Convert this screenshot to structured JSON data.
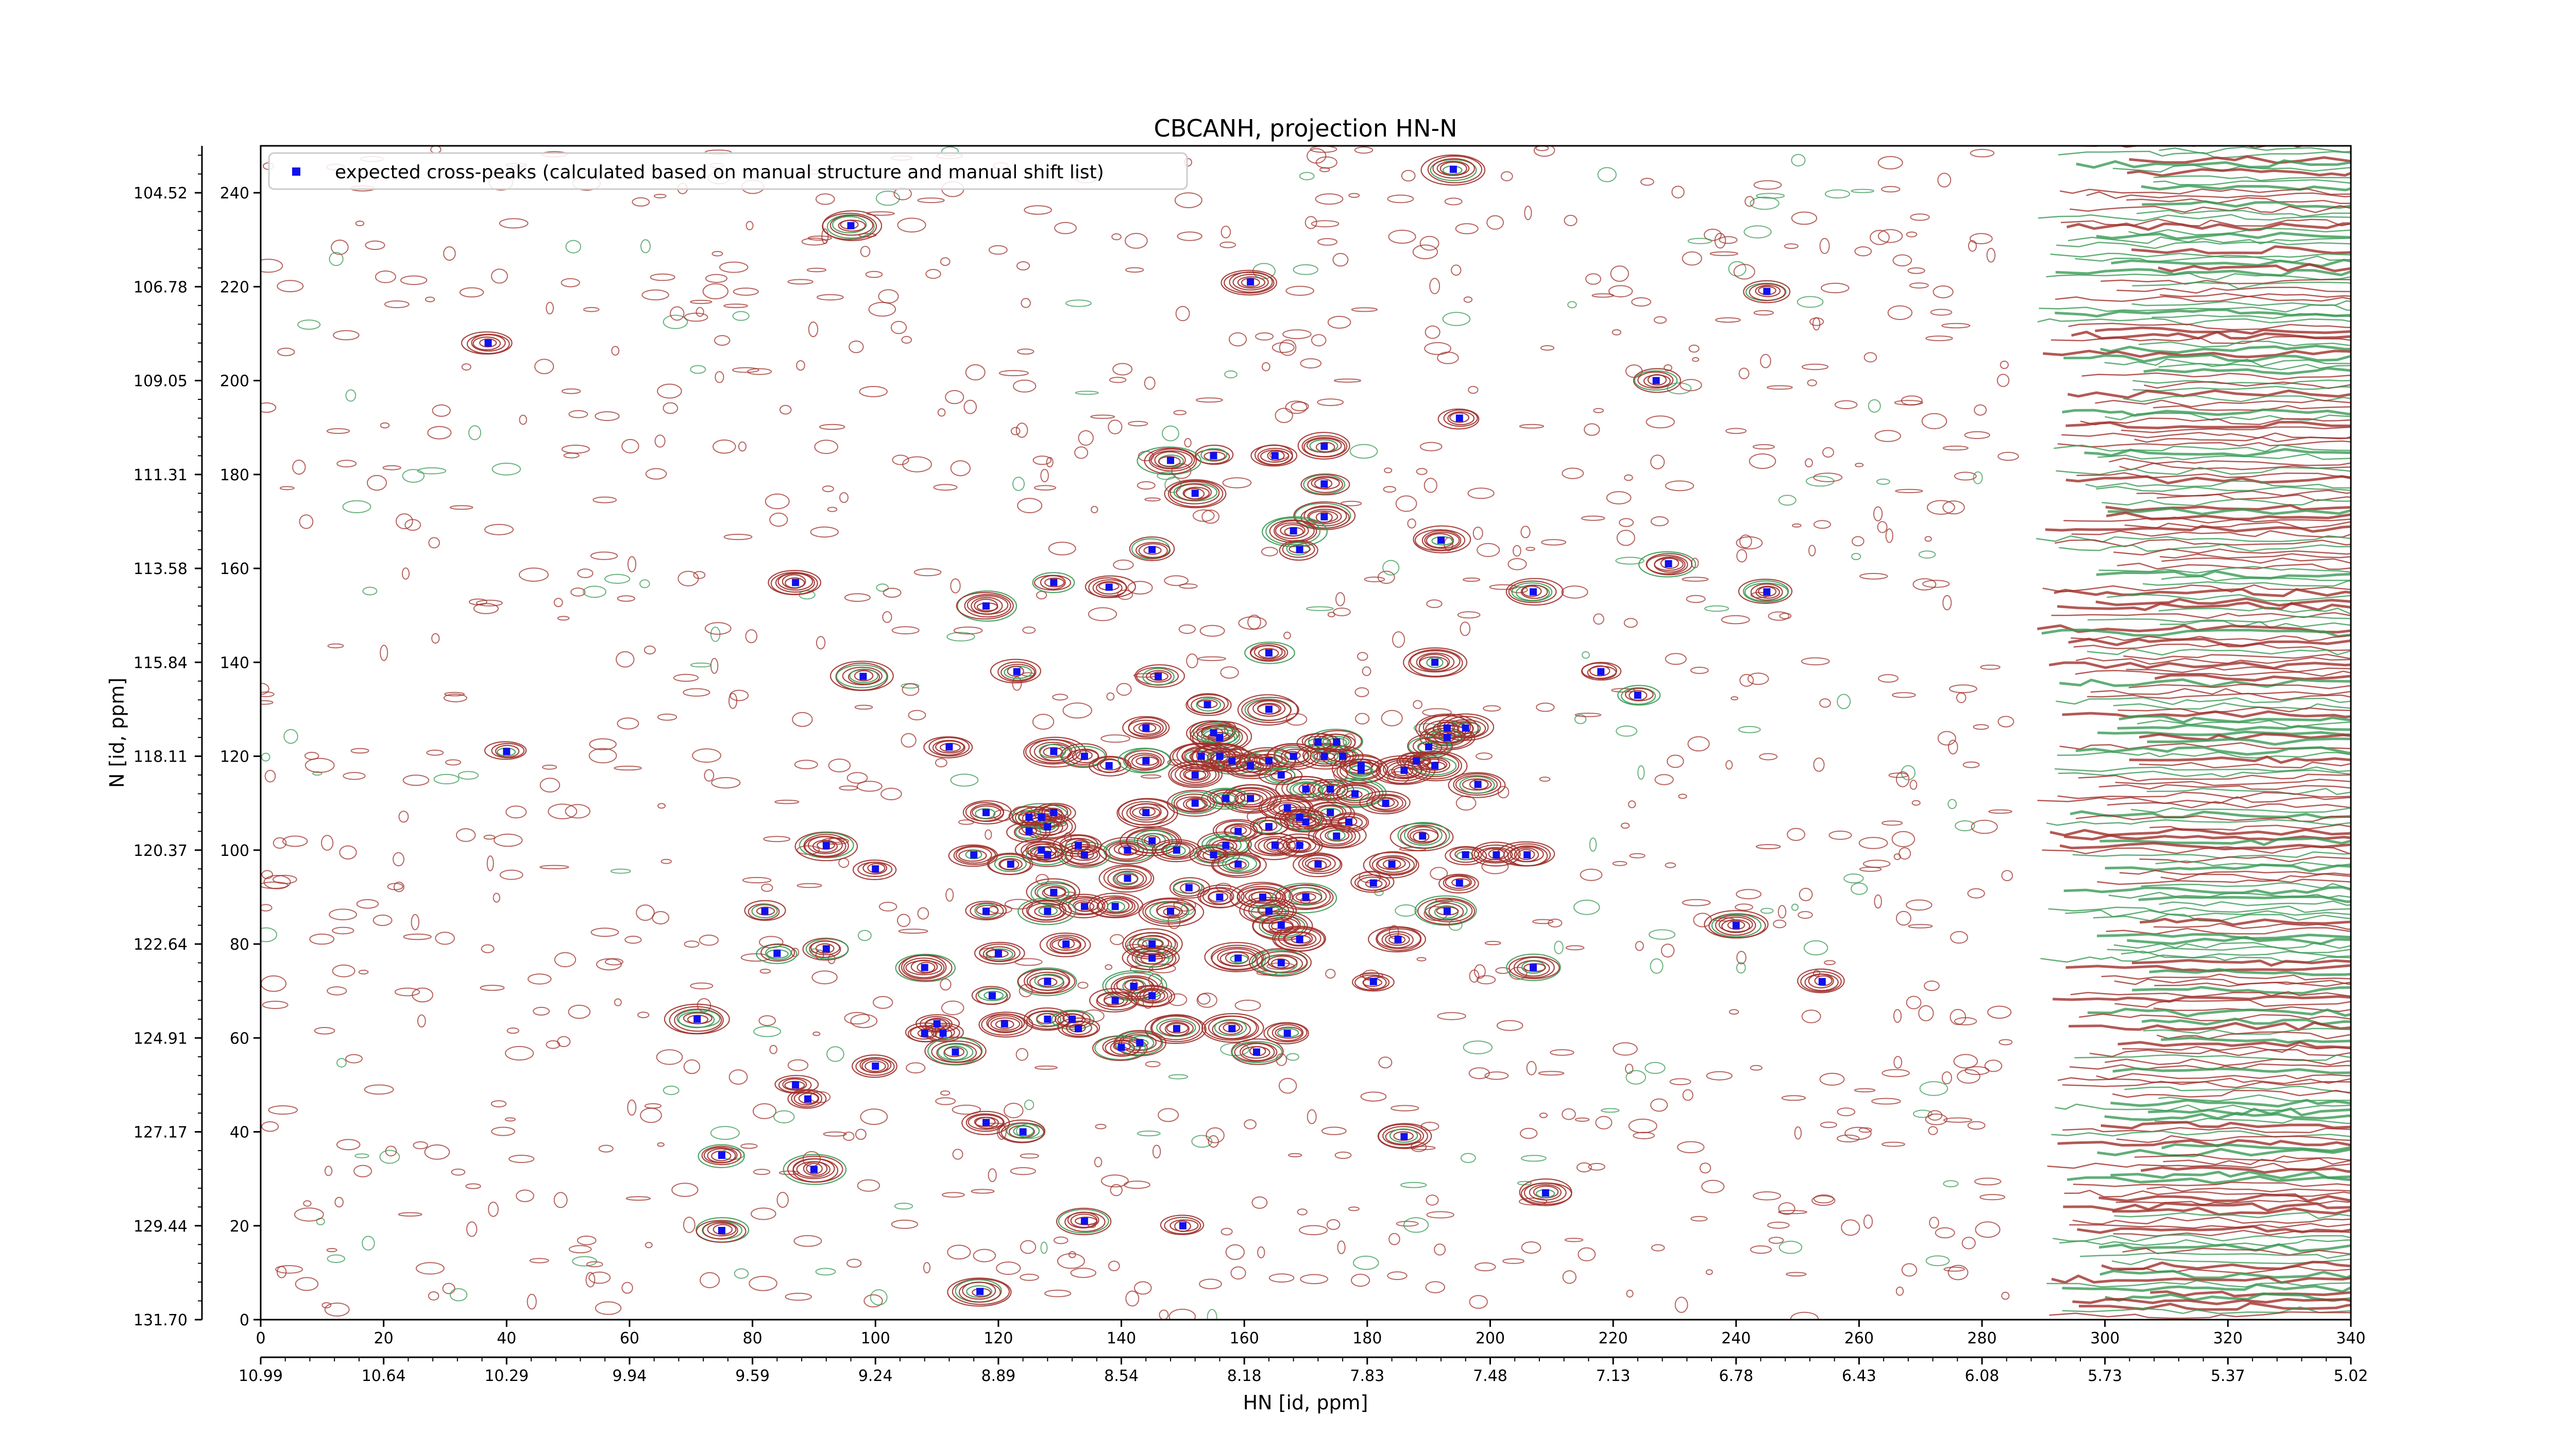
{
  "chart_data": {
    "type": "scatter",
    "title": "CBCANH, projection HN-N",
    "xlabel": "HN [id, ppm]",
    "ylabel": "N [id, ppm]",
    "x_index_range": [
      0,
      340
    ],
    "y_index_range": [
      0,
      250
    ],
    "x_index_ticks": [
      "0",
      "20",
      "40",
      "60",
      "80",
      "100",
      "120",
      "140",
      "160",
      "180",
      "200",
      "220",
      "240",
      "260",
      "280",
      "300",
      "320",
      "340"
    ],
    "x_ppm_ticks": [
      "10.99",
      "10.64",
      "10.29",
      "9.94",
      "9.59",
      "9.24",
      "8.89",
      "8.54",
      "8.18",
      "7.83",
      "7.48",
      "7.13",
      "6.78",
      "6.43",
      "6.08",
      "5.73",
      "5.37",
      "5.02"
    ],
    "y_index_ticks": [
      "0",
      "20",
      "40",
      "60",
      "80",
      "100",
      "120",
      "140",
      "160",
      "180",
      "200",
      "220",
      "240"
    ],
    "y_ppm_ticks": [
      "131.70",
      "129.44",
      "127.17",
      "124.91",
      "122.64",
      "120.37",
      "118.11",
      "115.84",
      "113.58",
      "111.31",
      "109.05",
      "106.78",
      "104.52"
    ],
    "legend": {
      "position": "upper-left",
      "entries": [
        "expected cross-peaks (calculated based on manual structure and manual shift list)"
      ]
    },
    "colors": {
      "positive_contours": "#a0302a",
      "negative_contours": "#3a9a55",
      "marker": "#1010ee",
      "noise_band": "#7a2a1a"
    },
    "grid": false,
    "series": [
      {
        "name": "expected cross-peaks (calculated based on manual structure and manual shift list)",
        "points": [
          [
            194,
            245
          ],
          [
            96,
            233
          ],
          [
            161,
            221
          ],
          [
            245,
            219
          ],
          [
            37,
            208
          ],
          [
            227,
            200
          ],
          [
            195,
            192
          ],
          [
            173,
            186
          ],
          [
            155,
            184
          ],
          [
            165,
            184
          ],
          [
            148,
            183
          ],
          [
            173,
            178
          ],
          [
            152,
            176
          ],
          [
            173,
            171
          ],
          [
            168,
            168
          ],
          [
            169,
            164
          ],
          [
            192,
            166
          ],
          [
            145,
            164
          ],
          [
            229,
            161
          ],
          [
            87,
            157
          ],
          [
            129,
            157
          ],
          [
            138,
            156
          ],
          [
            207,
            155
          ],
          [
            245,
            155
          ],
          [
            118,
            152
          ],
          [
            164,
            142
          ],
          [
            191,
            140
          ],
          [
            98,
            137
          ],
          [
            123,
            138
          ],
          [
            146,
            137
          ],
          [
            218,
            138
          ],
          [
            224,
            133
          ],
          [
            154,
            131
          ],
          [
            164,
            130
          ],
          [
            144,
            126
          ],
          [
            155,
            125
          ],
          [
            156,
            124
          ],
          [
            196,
            126
          ],
          [
            193,
            126
          ],
          [
            193,
            124
          ],
          [
            190,
            122
          ],
          [
            40,
            121
          ],
          [
            112,
            122
          ],
          [
            129,
            121
          ],
          [
            134,
            120
          ],
          [
            138,
            118
          ],
          [
            144,
            119
          ],
          [
            153,
            120
          ],
          [
            156,
            120
          ],
          [
            158,
            119
          ],
          [
            161,
            118
          ],
          [
            164,
            119
          ],
          [
            168,
            120
          ],
          [
            173,
            120
          ],
          [
            176,
            120
          ],
          [
            179,
            118
          ],
          [
            186,
            117
          ],
          [
            188,
            119
          ],
          [
            191,
            118
          ],
          [
            175,
            123
          ],
          [
            172,
            123
          ],
          [
            174,
            113
          ],
          [
            179,
            117
          ],
          [
            166,
            116
          ],
          [
            152,
            116
          ],
          [
            170,
            113
          ],
          [
            178,
            112
          ],
          [
            183,
            110
          ],
          [
            198,
            114
          ],
          [
            167,
            109
          ],
          [
            161,
            111
          ],
          [
            157,
            111
          ],
          [
            152,
            110
          ],
          [
            174,
            108
          ],
          [
            169,
            107
          ],
          [
            177,
            106
          ],
          [
            144,
            108
          ],
          [
            164,
            105
          ],
          [
            159,
            104
          ],
          [
            127,
            107
          ],
          [
            129,
            108
          ],
          [
            118,
            108
          ],
          [
            125,
            107
          ],
          [
            128,
            105
          ],
          [
            125,
            104
          ],
          [
            170,
            106
          ],
          [
            189,
            103
          ],
          [
            175,
            103
          ],
          [
            157,
            101
          ],
          [
            169,
            101
          ],
          [
            165,
            101
          ],
          [
            141,
            100
          ],
          [
            134,
            99
          ],
          [
            127,
            100
          ],
          [
            133,
            101
          ],
          [
            92,
            101
          ],
          [
            100,
            96
          ],
          [
            122,
            97
          ],
          [
            128,
            99
          ],
          [
            116,
            99
          ],
          [
            145,
            102
          ],
          [
            149,
            100
          ],
          [
            155,
            99
          ],
          [
            159,
            97
          ],
          [
            172,
            97
          ],
          [
            184,
            97
          ],
          [
            196,
            99
          ],
          [
            201,
            99
          ],
          [
            206,
            99
          ],
          [
            151,
            92
          ],
          [
            141,
            94
          ],
          [
            129,
            91
          ],
          [
            134,
            88
          ],
          [
            128,
            87
          ],
          [
            139,
            88
          ],
          [
            148,
            87
          ],
          [
            156,
            90
          ],
          [
            163,
            90
          ],
          [
            170,
            90
          ],
          [
            181,
            93
          ],
          [
            164,
            87
          ],
          [
            195,
            93
          ],
          [
            193,
            87
          ],
          [
            118,
            87
          ],
          [
            166,
            84
          ],
          [
            82,
            87
          ],
          [
            240,
            84
          ],
          [
            185,
            81
          ],
          [
            145,
            80
          ],
          [
            131,
            80
          ],
          [
            145,
            77
          ],
          [
            92,
            79
          ],
          [
            84,
            78
          ],
          [
            120,
            78
          ],
          [
            159,
            77
          ],
          [
            166,
            76
          ],
          [
            169,
            81
          ],
          [
            108,
            75
          ],
          [
            128,
            72
          ],
          [
            142,
            71
          ],
          [
            139,
            68
          ],
          [
            207,
            75
          ],
          [
            181,
            72
          ],
          [
            254,
            72
          ],
          [
            119,
            69
          ],
          [
            145,
            69
          ],
          [
            71,
            64
          ],
          [
            121,
            63
          ],
          [
            128,
            64
          ],
          [
            132,
            64
          ],
          [
            133,
            62
          ],
          [
            143,
            59
          ],
          [
            149,
            62
          ],
          [
            158,
            62
          ],
          [
            167,
            61
          ],
          [
            110,
            63
          ],
          [
            111,
            61
          ],
          [
            108,
            61
          ],
          [
            113,
            57
          ],
          [
            140,
            58
          ],
          [
            162,
            57
          ],
          [
            100,
            54
          ],
          [
            87,
            50
          ],
          [
            89,
            47
          ],
          [
            118,
            42
          ],
          [
            124,
            40
          ],
          [
            186,
            39
          ],
          [
            75,
            35
          ],
          [
            90,
            32
          ],
          [
            209,
            27
          ],
          [
            75,
            19
          ],
          [
            134,
            21
          ],
          [
            150,
            20
          ],
          [
            117,
            6
          ]
        ]
      }
    ]
  }
}
